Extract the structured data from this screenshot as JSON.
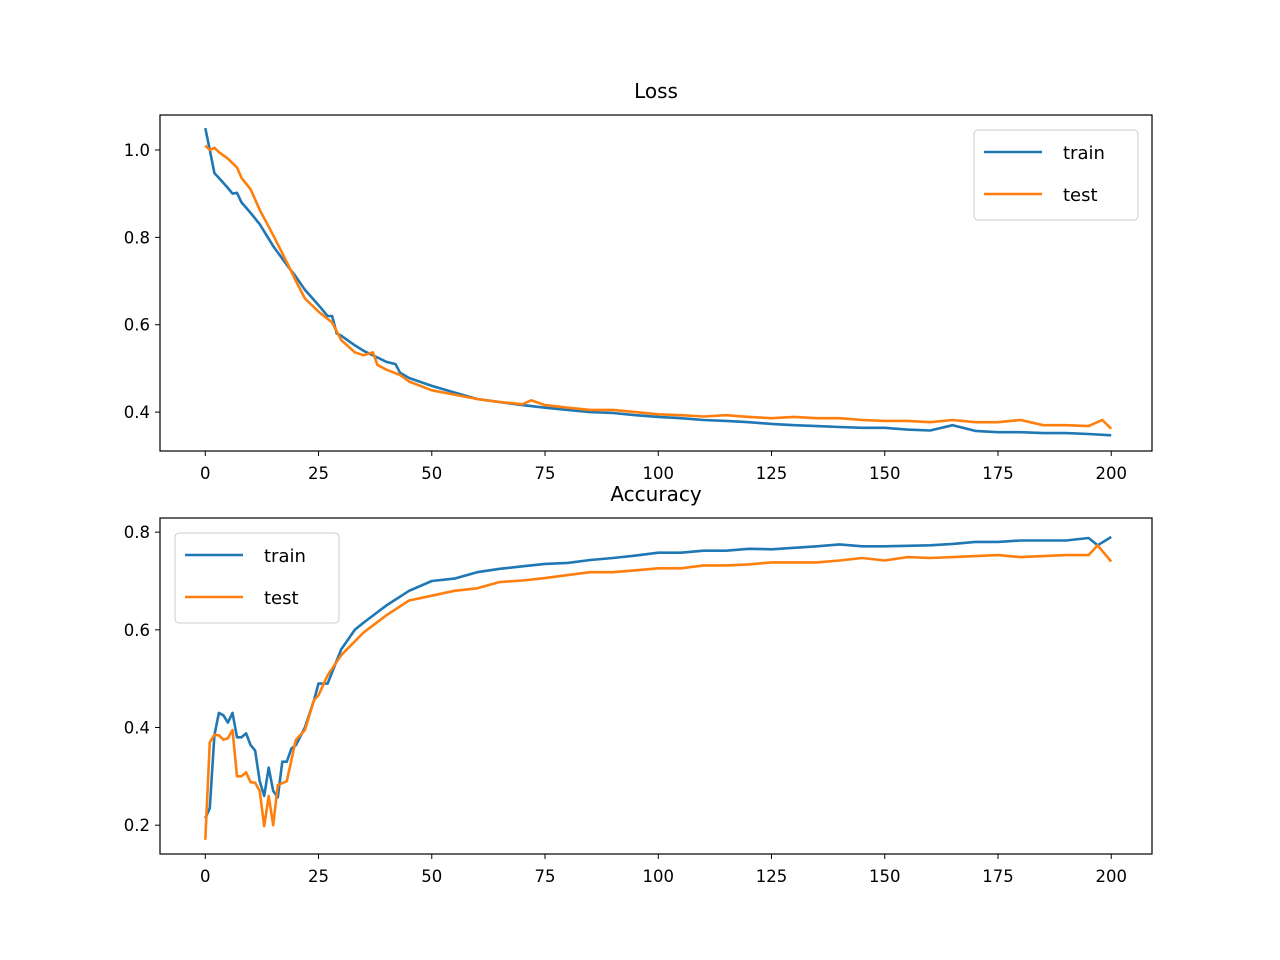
{
  "chart_data": [
    {
      "type": "line",
      "title": "Loss",
      "xlim": [
        -10,
        209
      ],
      "ylim": [
        0.311,
        1.08
      ],
      "xticks": [
        0,
        25,
        50,
        75,
        100,
        125,
        150,
        175,
        200
      ],
      "yticks": [
        0.4,
        0.6,
        0.8,
        1.0
      ],
      "xtick_labels": [
        "0",
        "25",
        "50",
        "75",
        "100",
        "125",
        "150",
        "175",
        "200"
      ],
      "ytick_labels": [
        "0.4",
        "0.6",
        "0.8",
        "1.0"
      ],
      "legend": "top-right",
      "grid": false,
      "series": [
        {
          "name": "train",
          "color": "#1f77b4",
          "points": [
            [
              0,
              1.05
            ],
            [
              1,
              1.0
            ],
            [
              2,
              0.947
            ],
            [
              3,
              0.936
            ],
            [
              5,
              0.913
            ],
            [
              6,
              0.9
            ],
            [
              7,
              0.902
            ],
            [
              8,
              0.88
            ],
            [
              10,
              0.856
            ],
            [
              12,
              0.83
            ],
            [
              15,
              0.78
            ],
            [
              18,
              0.737
            ],
            [
              20,
              0.71
            ],
            [
              22,
              0.68
            ],
            [
              25,
              0.645
            ],
            [
              27,
              0.62
            ],
            [
              28,
              0.62
            ],
            [
              29,
              0.58
            ],
            [
              30,
              0.575
            ],
            [
              33,
              0.553
            ],
            [
              35,
              0.54
            ],
            [
              40,
              0.515
            ],
            [
              42,
              0.51
            ],
            [
              43,
              0.49
            ],
            [
              45,
              0.478
            ],
            [
              50,
              0.46
            ],
            [
              55,
              0.445
            ],
            [
              60,
              0.43
            ],
            [
              65,
              0.423
            ],
            [
              70,
              0.416
            ],
            [
              75,
              0.41
            ],
            [
              80,
              0.405
            ],
            [
              85,
              0.4
            ],
            [
              90,
              0.398
            ],
            [
              95,
              0.393
            ],
            [
              100,
              0.389
            ],
            [
              105,
              0.386
            ],
            [
              110,
              0.382
            ],
            [
              115,
              0.38
            ],
            [
              120,
              0.377
            ],
            [
              125,
              0.373
            ],
            [
              130,
              0.37
            ],
            [
              135,
              0.368
            ],
            [
              140,
              0.366
            ],
            [
              145,
              0.364
            ],
            [
              150,
              0.364
            ],
            [
              155,
              0.36
            ],
            [
              160,
              0.358
            ],
            [
              165,
              0.37
            ],
            [
              170,
              0.357
            ],
            [
              175,
              0.354
            ],
            [
              180,
              0.354
            ],
            [
              185,
              0.352
            ],
            [
              190,
              0.352
            ],
            [
              195,
              0.35
            ],
            [
              200,
              0.347
            ]
          ]
        },
        {
          "name": "test",
          "color": "#ff7f0e",
          "points": [
            [
              0,
              1.01
            ],
            [
              1,
              1.0
            ],
            [
              2,
              1.005
            ],
            [
              3,
              0.995
            ],
            [
              5,
              0.98
            ],
            [
              7,
              0.96
            ],
            [
              8,
              0.936
            ],
            [
              10,
              0.91
            ],
            [
              12,
              0.863
            ],
            [
              15,
              0.805
            ],
            [
              18,
              0.743
            ],
            [
              20,
              0.7
            ],
            [
              22,
              0.66
            ],
            [
              25,
              0.63
            ],
            [
              28,
              0.605
            ],
            [
              30,
              0.565
            ],
            [
              33,
              0.537
            ],
            [
              35,
              0.53
            ],
            [
              37,
              0.537
            ],
            [
              38,
              0.508
            ],
            [
              40,
              0.497
            ],
            [
              43,
              0.485
            ],
            [
              45,
              0.47
            ],
            [
              50,
              0.45
            ],
            [
              55,
              0.44
            ],
            [
              60,
              0.43
            ],
            [
              65,
              0.423
            ],
            [
              70,
              0.418
            ],
            [
              72,
              0.427
            ],
            [
              75,
              0.416
            ],
            [
              80,
              0.41
            ],
            [
              85,
              0.405
            ],
            [
              90,
              0.405
            ],
            [
              95,
              0.4
            ],
            [
              100,
              0.395
            ],
            [
              105,
              0.393
            ],
            [
              110,
              0.39
            ],
            [
              115,
              0.393
            ],
            [
              120,
              0.389
            ],
            [
              125,
              0.386
            ],
            [
              130,
              0.389
            ],
            [
              135,
              0.386
            ],
            [
              140,
              0.386
            ],
            [
              145,
              0.382
            ],
            [
              150,
              0.38
            ],
            [
              155,
              0.38
            ],
            [
              160,
              0.377
            ],
            [
              165,
              0.382
            ],
            [
              170,
              0.377
            ],
            [
              175,
              0.377
            ],
            [
              180,
              0.382
            ],
            [
              185,
              0.37
            ],
            [
              190,
              0.37
            ],
            [
              195,
              0.368
            ],
            [
              198,
              0.382
            ],
            [
              200,
              0.362
            ]
          ]
        }
      ]
    },
    {
      "type": "line",
      "title": "Accuracy",
      "xlim": [
        -10,
        209
      ],
      "ylim": [
        0.141,
        0.829
      ],
      "xticks": [
        0,
        25,
        50,
        75,
        100,
        125,
        150,
        175,
        200
      ],
      "yticks": [
        0.2,
        0.4,
        0.6,
        0.8
      ],
      "xtick_labels": [
        "0",
        "25",
        "50",
        "75",
        "100",
        "125",
        "150",
        "175",
        "200"
      ],
      "ytick_labels": [
        "0.2",
        "0.4",
        "0.6",
        "0.8"
      ],
      "legend": "top-left",
      "grid": false,
      "series": [
        {
          "name": "train",
          "color": "#1f77b4",
          "points": [
            [
              0,
              0.214
            ],
            [
              1,
              0.235
            ],
            [
              2,
              0.384
            ],
            [
              3,
              0.43
            ],
            [
              4,
              0.425
            ],
            [
              5,
              0.41
            ],
            [
              6,
              0.43
            ],
            [
              7,
              0.38
            ],
            [
              8,
              0.38
            ],
            [
              9,
              0.388
            ],
            [
              10,
              0.364
            ],
            [
              11,
              0.353
            ],
            [
              12,
              0.29
            ],
            [
              13,
              0.26
            ],
            [
              14,
              0.318
            ],
            [
              15,
              0.27
            ],
            [
              16,
              0.257
            ],
            [
              17,
              0.33
            ],
            [
              18,
              0.33
            ],
            [
              19,
              0.357
            ],
            [
              20,
              0.364
            ],
            [
              22,
              0.4
            ],
            [
              24,
              0.456
            ],
            [
              25,
              0.49
            ],
            [
              27,
              0.49
            ],
            [
              30,
              0.56
            ],
            [
              33,
              0.6
            ],
            [
              35,
              0.615
            ],
            [
              40,
              0.65
            ],
            [
              45,
              0.68
            ],
            [
              50,
              0.7
            ],
            [
              55,
              0.705
            ],
            [
              60,
              0.718
            ],
            [
              65,
              0.725
            ],
            [
              70,
              0.73
            ],
            [
              75,
              0.735
            ],
            [
              80,
              0.737
            ],
            [
              85,
              0.743
            ],
            [
              90,
              0.747
            ],
            [
              95,
              0.752
            ],
            [
              100,
              0.758
            ],
            [
              105,
              0.758
            ],
            [
              110,
              0.762
            ],
            [
              115,
              0.762
            ],
            [
              120,
              0.766
            ],
            [
              125,
              0.765
            ],
            [
              130,
              0.768
            ],
            [
              135,
              0.771
            ],
            [
              140,
              0.775
            ],
            [
              145,
              0.771
            ],
            [
              150,
              0.771
            ],
            [
              155,
              0.772
            ],
            [
              160,
              0.773
            ],
            [
              165,
              0.776
            ],
            [
              170,
              0.78
            ],
            [
              175,
              0.78
            ],
            [
              180,
              0.783
            ],
            [
              185,
              0.783
            ],
            [
              190,
              0.783
            ],
            [
              195,
              0.788
            ],
            [
              197,
              0.773
            ],
            [
              200,
              0.79
            ]
          ]
        },
        {
          "name": "test",
          "color": "#ff7f0e",
          "points": [
            [
              0,
              0.17
            ],
            [
              1,
              0.37
            ],
            [
              2,
              0.385
            ],
            [
              3,
              0.384
            ],
            [
              4,
              0.375
            ],
            [
              5,
              0.378
            ],
            [
              6,
              0.395
            ],
            [
              7,
              0.3
            ],
            [
              8,
              0.3
            ],
            [
              9,
              0.308
            ],
            [
              10,
              0.288
            ],
            [
              11,
              0.287
            ],
            [
              12,
              0.27
            ],
            [
              13,
              0.198
            ],
            [
              14,
              0.26
            ],
            [
              15,
              0.2
            ],
            [
              16,
              0.282
            ],
            [
              17,
              0.286
            ],
            [
              18,
              0.29
            ],
            [
              19,
              0.333
            ],
            [
              20,
              0.375
            ],
            [
              22,
              0.395
            ],
            [
              24,
              0.456
            ],
            [
              25,
              0.466
            ],
            [
              27,
              0.507
            ],
            [
              30,
              0.548
            ],
            [
              35,
              0.595
            ],
            [
              40,
              0.63
            ],
            [
              45,
              0.66
            ],
            [
              50,
              0.67
            ],
            [
              55,
              0.68
            ],
            [
              60,
              0.685
            ],
            [
              65,
              0.698
            ],
            [
              70,
              0.701
            ],
            [
              75,
              0.706
            ],
            [
              80,
              0.712
            ],
            [
              85,
              0.718
            ],
            [
              90,
              0.718
            ],
            [
              95,
              0.722
            ],
            [
              100,
              0.726
            ],
            [
              105,
              0.726
            ],
            [
              110,
              0.732
            ],
            [
              115,
              0.732
            ],
            [
              120,
              0.734
            ],
            [
              125,
              0.738
            ],
            [
              130,
              0.738
            ],
            [
              135,
              0.738
            ],
            [
              140,
              0.742
            ],
            [
              145,
              0.747
            ],
            [
              150,
              0.742
            ],
            [
              155,
              0.749
            ],
            [
              160,
              0.747
            ],
            [
              165,
              0.749
            ],
            [
              170,
              0.751
            ],
            [
              175,
              0.753
            ],
            [
              180,
              0.749
            ],
            [
              185,
              0.751
            ],
            [
              190,
              0.753
            ],
            [
              195,
              0.753
            ],
            [
              197,
              0.773
            ],
            [
              200,
              0.74
            ]
          ]
        }
      ]
    }
  ]
}
